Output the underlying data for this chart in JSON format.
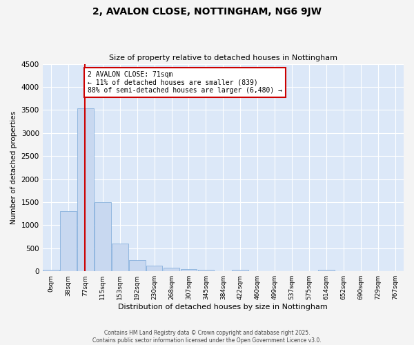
{
  "title": "2, AVALON CLOSE, NOTTINGHAM, NG6 9JW",
  "subtitle": "Size of property relative to detached houses in Nottingham",
  "xlabel": "Distribution of detached houses by size in Nottingham",
  "ylabel": "Number of detached properties",
  "bar_color": "#c8d8f0",
  "bar_edge_color": "#7aa8d8",
  "background_color": "#dce8f8",
  "grid_color": "#ffffff",
  "fig_background": "#f4f4f4",
  "categories": [
    "0sqm",
    "38sqm",
    "77sqm",
    "115sqm",
    "153sqm",
    "192sqm",
    "230sqm",
    "268sqm",
    "307sqm",
    "345sqm",
    "384sqm",
    "422sqm",
    "460sqm",
    "499sqm",
    "537sqm",
    "575sqm",
    "614sqm",
    "652sqm",
    "690sqm",
    "729sqm",
    "767sqm"
  ],
  "values": [
    30,
    1300,
    3530,
    1500,
    600,
    240,
    120,
    75,
    50,
    30,
    0,
    40,
    0,
    0,
    0,
    0,
    30,
    0,
    0,
    0,
    0
  ],
  "ylim": [
    0,
    4500
  ],
  "yticks": [
    0,
    500,
    1000,
    1500,
    2000,
    2500,
    3000,
    3500,
    4000,
    4500
  ],
  "property_line_idx": 1.97,
  "annotation_text": "2 AVALON CLOSE: 71sqm\n← 11% of detached houses are smaller (839)\n88% of semi-detached houses are larger (6,480) →",
  "annotation_box_color": "#ffffff",
  "annotation_box_edge": "#cc0000",
  "line_color": "#cc0000",
  "footer": "Contains HM Land Registry data © Crown copyright and database right 2025.\nContains public sector information licensed under the Open Government Licence v3.0."
}
